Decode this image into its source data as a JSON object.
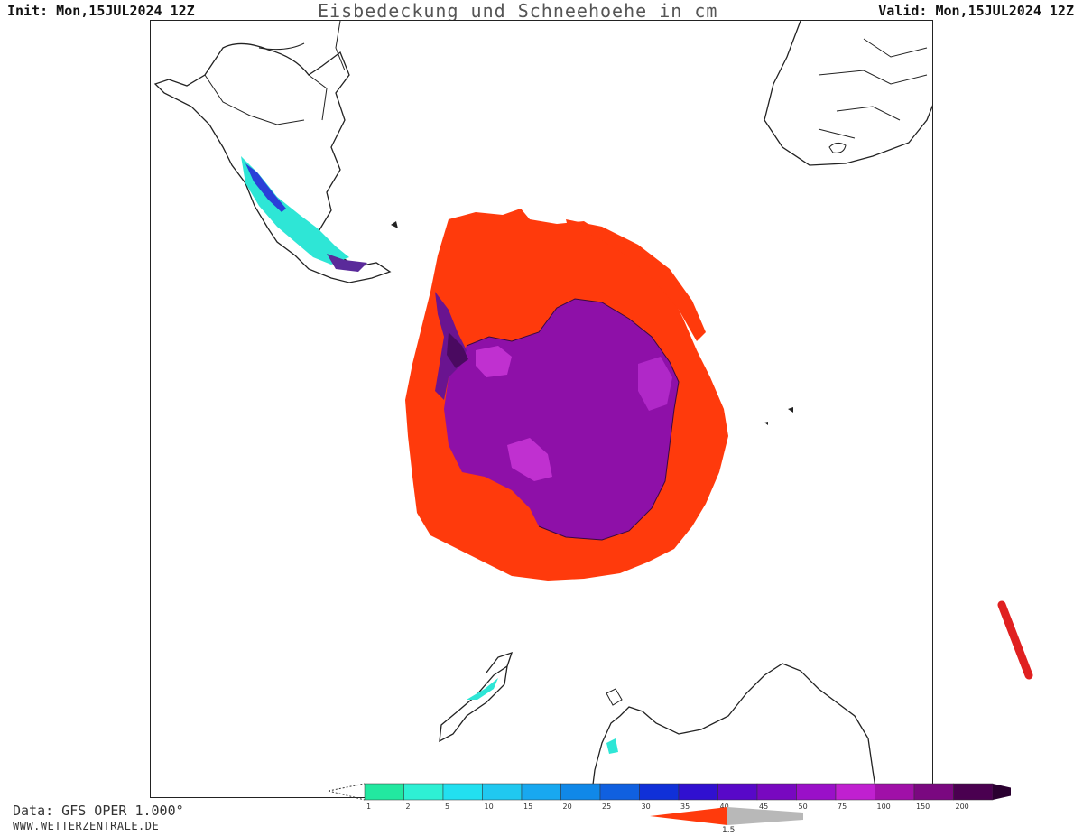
{
  "header": {
    "init": "Init: Mon,15JUL2024 12Z",
    "title": "Eisbedeckung und Schneehoehe in cm",
    "valid": "Valid: Mon,15JUL2024 12Z"
  },
  "footer": {
    "source": "Data: GFS OPER 1.000°",
    "website": "WWW.WETTERZENTRALE.DE"
  },
  "legend": {
    "snow_levels": [
      "1",
      "2",
      "5",
      "10",
      "15",
      "20",
      "25",
      "30",
      "35",
      "40",
      "45",
      "50",
      "75",
      "100",
      "150",
      "200"
    ],
    "snow_colors": [
      "#22e8a0",
      "#2ef0d4",
      "#22e0f0",
      "#20c8f0",
      "#18a8f0",
      "#1088e8",
      "#1060e0",
      "#1030d8",
      "#3010d0",
      "#5808c8",
      "#7808c0",
      "#9a10c8",
      "#c020d0",
      "#a010a8",
      "#7a0880",
      "#4a0050"
    ],
    "ice_label": "1.5",
    "ice_color": "#ff3a0c",
    "ice_gray": "#b8b8b8"
  },
  "map": {
    "sea_ice_color": "#ff3a0c",
    "land_ice_color": "#8e10a8",
    "land_ice_light": "#c030d0",
    "land_ice_dark": "#4a0a60",
    "coast_color": "#222222"
  },
  "annotation": {
    "color": "#e02020"
  }
}
